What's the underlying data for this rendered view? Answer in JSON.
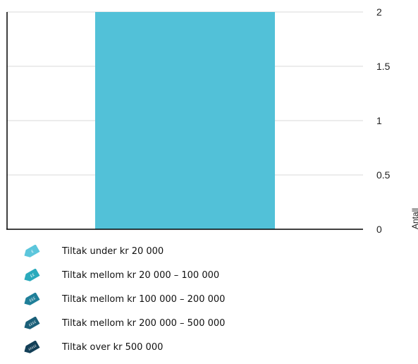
{
  "chart_data": {
    "type": "bar",
    "categories": [
      ""
    ],
    "series": [
      {
        "values": [
          2
        ],
        "color": "#52c1d8"
      }
    ],
    "ylabel": "Antall",
    "ylim": [
      0,
      2
    ],
    "yticks": [
      "0",
      "0.5",
      "1",
      "1.5",
      "2"
    ],
    "y_axis_side": "right",
    "grid": true
  },
  "legend": [
    {
      "label": "Tiltak under kr 20 000",
      "icon": "price-tag-icon",
      "color": "#5cc6dc",
      "tag_text": "£"
    },
    {
      "label": "Tiltak mellom kr 20 000 – 100 000",
      "icon": "price-tag-icon",
      "color": "#2aaabc",
      "tag_text": "££"
    },
    {
      "label": "Tiltak mellom kr 100 000 – 200 000",
      "icon": "price-tag-icon",
      "color": "#1f7f99",
      "tag_text": "£££"
    },
    {
      "label": "Tiltak mellom kr 200 000 – 500 000",
      "icon": "price-tag-icon",
      "color": "#1a5f78",
      "tag_text": "££££"
    },
    {
      "label": "Tiltak over kr 500 000",
      "icon": "price-tag-icon",
      "color": "#133f57",
      "tag_text": "£££££"
    }
  ]
}
